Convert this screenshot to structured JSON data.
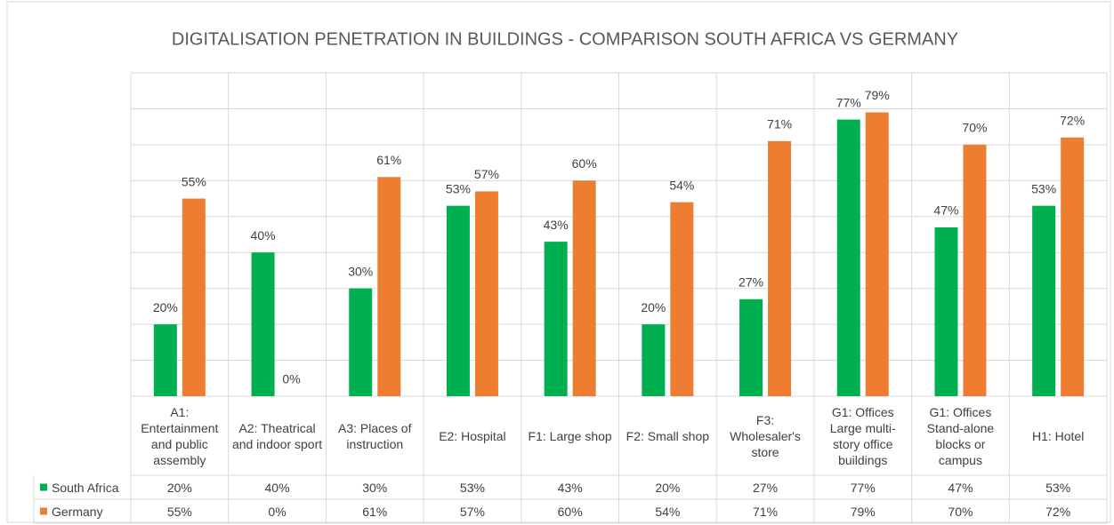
{
  "chart_data": {
    "type": "bar",
    "title": "DIGITALISATION PENETRATION IN BUILDINGS - COMPARISON SOUTH AFRICA VS GERMANY",
    "categories": [
      "A1: Entertainment and public assembly",
      "A2: Theatrical and indoor sport",
      "A3: Places of instruction",
      "E2: Hospital",
      "F1: Large shop",
      "F2: Small shop",
      "F3: Wholesaler's store",
      "G1: Offices Large multi-story office buildings",
      "G1: Offices Stand-alone blocks or campus",
      "H1: Hotel"
    ],
    "series": [
      {
        "name": "South Africa",
        "color": "#00b050",
        "values": [
          20,
          40,
          30,
          53,
          43,
          20,
          27,
          77,
          47,
          53
        ],
        "value_labels": [
          "20%",
          "40%",
          "30%",
          "53%",
          "43%",
          "20%",
          "27%",
          "77%",
          "47%",
          "53%"
        ]
      },
      {
        "name": "Germany",
        "color": "#ed7d31",
        "values": [
          55,
          0,
          61,
          57,
          60,
          54,
          71,
          79,
          70,
          72
        ],
        "value_labels": [
          "55%",
          "0%",
          "61%",
          "57%",
          "60%",
          "54%",
          "71%",
          "79%",
          "70%",
          "72%"
        ]
      }
    ],
    "ylim": [
      0,
      90
    ],
    "yticks": [
      0,
      10,
      20,
      30,
      40,
      50,
      60,
      70,
      80,
      90
    ],
    "grid": true,
    "data_table": true
  }
}
